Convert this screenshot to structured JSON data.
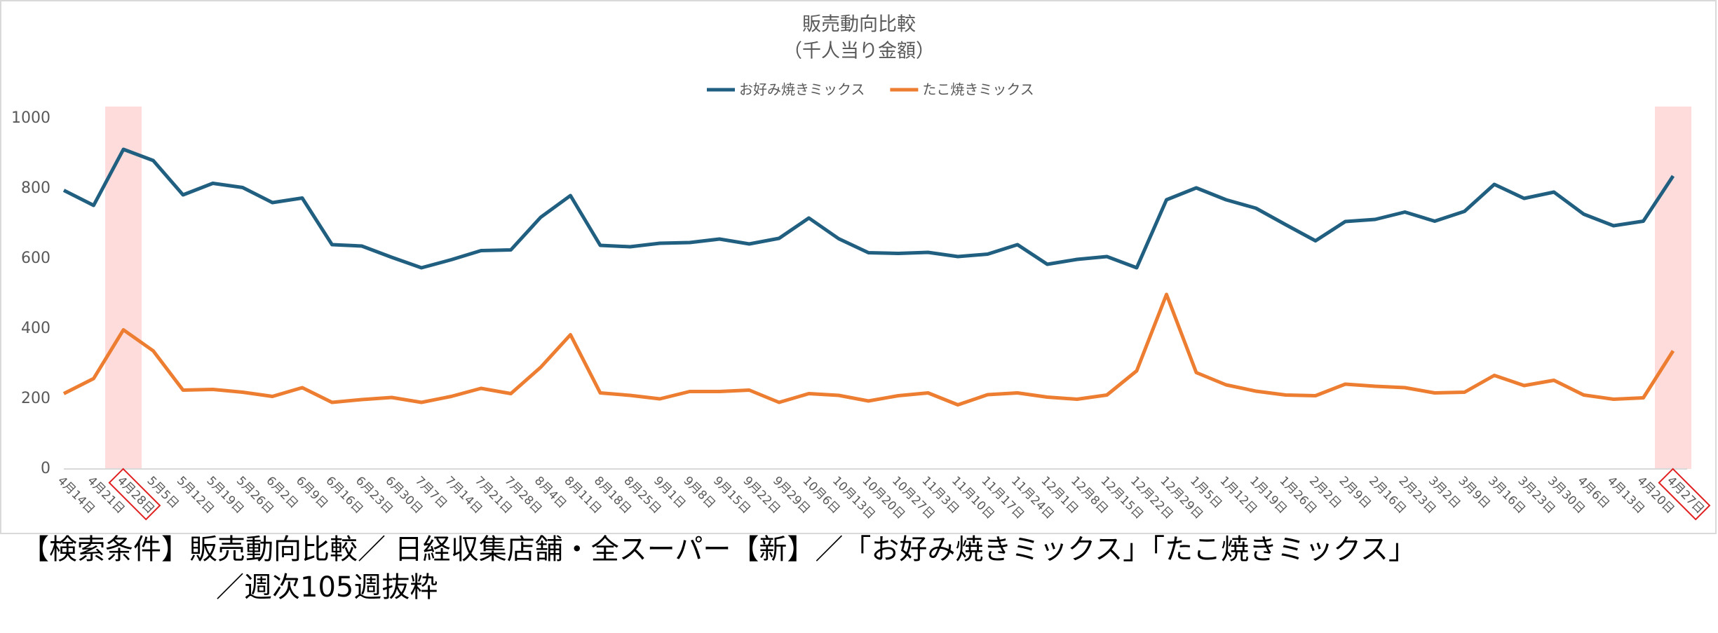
{
  "chart_data": {
    "type": "line",
    "title": "販売動向比較",
    "subtitle": "（千人当り金額）",
    "categories": [
      "4月14日",
      "4月21日",
      "4月28日",
      "5月5日",
      "5月12日",
      "5月19日",
      "5月26日",
      "6月2日",
      "6月9日",
      "6月16日",
      "6月23日",
      "6月30日",
      "7月7日",
      "7月14日",
      "7月21日",
      "7月28日",
      "8月4日",
      "8月11日",
      "8月18日",
      "8月25日",
      "9月1日",
      "9月8日",
      "9月15日",
      "9月22日",
      "9月29日",
      "10月6日",
      "10月13日",
      "10月20日",
      "10月27日",
      "11月3日",
      "11月10日",
      "11月17日",
      "11月24日",
      "12月1日",
      "12月8日",
      "12月15日",
      "12月22日",
      "12月29日",
      "1月5日",
      "1月12日",
      "1月19日",
      "1月26日",
      "2月2日",
      "2月9日",
      "2月16日",
      "2月23日",
      "3月2日",
      "3月9日",
      "3月16日",
      "3月23日",
      "3月30日",
      "4月6日",
      "4月13日",
      "4月20日",
      "4月27日"
    ],
    "series": [
      {
        "name": "お好み焼きミックス",
        "color": "#215f80",
        "values": [
          795,
          752,
          912,
          880,
          782,
          815,
          803,
          760,
          773,
          640,
          636,
          604,
          574,
          597,
          623,
          625,
          718,
          780,
          638,
          634,
          644,
          646,
          656,
          642,
          658,
          716,
          657,
          617,
          615,
          618,
          606,
          613,
          640,
          584,
          598,
          606,
          574,
          768,
          802,
          768,
          744,
          697,
          651,
          706,
          712,
          733,
          707,
          735,
          812,
          772,
          790,
          727,
          694,
          707,
          836
        ]
      },
      {
        "name": "たこ焼きミックス",
        "color": "#ed7d31",
        "values": [
          215,
          258,
          397,
          337,
          225,
          227,
          219,
          207,
          232,
          190,
          198,
          204,
          190,
          207,
          230,
          215,
          290,
          383,
          217,
          210,
          200,
          221,
          221,
          225,
          190,
          215,
          210,
          194,
          209,
          217,
          183,
          212,
          217,
          205,
          199,
          211,
          280,
          498,
          275,
          240,
          222,
          211,
          209,
          242,
          236,
          232,
          217,
          219,
          267,
          238,
          253,
          211,
          199,
          203,
          337
        ]
      }
    ],
    "ylim": [
      0,
      1000
    ],
    "yticks": [
      0,
      200,
      400,
      600,
      800,
      1000
    ],
    "grid": false,
    "legend": "top",
    "highlight_indices": [
      2,
      54
    ],
    "highlight_color": "#ffdcdc",
    "highlight_box_color": "#e02020"
  },
  "footnote": [
    "【検索条件】販売動向比較／ 日経収集店舗・全スーパー【新】／「お好み焼きミックス」「たこ焼きミックス」",
    "／週次105週抜粋"
  ]
}
